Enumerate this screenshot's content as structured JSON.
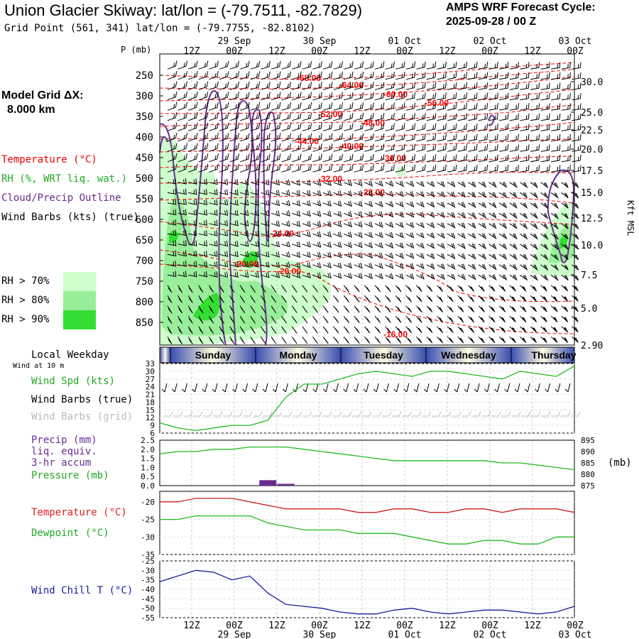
{
  "header": {
    "title": "Union Glacier Skiway:  lat/lon = (-79.7511, -82.7829)",
    "grid_point": "Grid Point (561, 341) lat/lon = (-79.7755, -82.8102)",
    "cycle_label": "AMPS WRF Forecast Cycle:",
    "cycle_value": "2025-09-28 / 00  Z"
  },
  "side_labels": {
    "model_grid": "Model Grid ΔX:",
    "model_grid_value": "8.000 km",
    "temperature": "Temperature (°C)",
    "rh": "RH (%, WRT liq. wat.)",
    "cloud": "Cloud/Precip Outline",
    "wind_barbs": "Wind Barbs (kts) (true)",
    "rh70": "RH > 70%",
    "rh80": "RH > 80%",
    "rh90": "RH > 90%",
    "local_weekday": "Local Weekday",
    "wind_at": "Wind at 10 m",
    "wind_spd": "Wind Spd (kts)",
    "wind_barbs_true": "Wind Barbs (true)",
    "wind_barbs_grid": "Wind Barbs (grid)",
    "precip": "Precip (mm)",
    "liq": "liq. equiv.",
    "accum": "3-hr accum",
    "pressure": "Pressure (mb)",
    "temp2": "Temperature (°C)",
    "dewpoint": "Dewpoint (°C)",
    "windchill": "Wind Chill T (°C)"
  },
  "colors": {
    "temperature": "#ff0000",
    "rh70": "#ccffcc",
    "rh80": "#99ee99",
    "rh90": "#33dd33",
    "cloud": "#6a2c91",
    "wind_speed": "#22bb22",
    "pressure": "#22bb22",
    "dewpoint": "#22bb22",
    "windchill": "#1a1aa0",
    "precip": "#6a2c91",
    "grid_barbs": "#bbbbbb"
  },
  "chart_data": [
    {
      "type": "line",
      "name": "cross-section",
      "ylabel": "P (mb)",
      "y2label": "Kft MSL",
      "x_top_hours": [
        "12Z",
        "00Z",
        "12Z",
        "00Z",
        "12Z",
        "00Z",
        "12Z",
        "00Z",
        "12Z",
        "00Z"
      ],
      "x_top_dates": [
        "29 Sep",
        "30 Sep",
        "01 Oct",
        "02 Oct",
        "03 Oct"
      ],
      "pressure_ticks": [
        250,
        300,
        350,
        400,
        450,
        500,
        550,
        600,
        650,
        700,
        750,
        800,
        850
      ],
      "kft_ticks": [
        "30.0",
        "25.0",
        "22.5",
        "20.0",
        "17.5",
        "15.0",
        "12.5",
        "10.0",
        "7.5",
        "5.0",
        "2.90"
      ],
      "temperature_contours": [
        "-68.00",
        "-64.00",
        "-60.00",
        "-56.00",
        "-52.00",
        "-48.00",
        "-44.00",
        "-40.00",
        "-36.00",
        "-32.00",
        "-28.00",
        "-24.00",
        "-20.00",
        "-20.00",
        "-16.00"
      ]
    },
    {
      "type": "line",
      "name": "wind",
      "weekdays": [
        "Sunday",
        "Monday",
        "Tuesday",
        "Wednesday",
        "Thursday"
      ],
      "y_ticks": [
        6,
        9,
        12,
        15,
        18,
        21,
        24,
        27,
        30,
        33
      ],
      "series": [
        {
          "values": [
            10,
            8,
            7,
            8,
            9,
            9,
            11,
            20,
            25,
            25,
            27,
            29,
            30,
            29,
            28,
            30,
            30,
            29,
            28,
            27,
            30,
            29,
            28,
            32
          ]
        }
      ]
    },
    {
      "type": "line",
      "name": "precip-pressure",
      "y_ticks": [
        "0.0",
        "0.5",
        "1.0",
        "1.5",
        "2.0",
        "2.5"
      ],
      "y2_ticks": [
        875,
        880,
        885,
        890,
        895
      ],
      "y2label": "(mb)",
      "pressure_values": [
        889,
        890,
        890,
        891,
        891,
        892,
        892,
        892,
        891,
        890,
        889,
        888,
        887,
        886,
        886,
        886,
        886,
        886,
        886,
        885,
        885,
        884,
        883,
        882
      ],
      "precip_values": [
        0,
        0,
        0,
        0,
        0,
        0,
        0.3,
        0.1,
        0,
        0,
        0,
        0,
        0,
        0,
        0,
        0,
        0,
        0,
        0,
        0,
        0,
        0,
        0,
        0
      ]
    },
    {
      "type": "line",
      "name": "temperature-dewpoint",
      "y_ticks": [
        -35,
        -30,
        -25,
        -20
      ],
      "series": [
        {
          "values": [
            -20,
            -20,
            -19,
            -19,
            -19,
            -20,
            -21,
            -22,
            -22,
            -22,
            -22,
            -23,
            -23,
            -22,
            -22,
            -23,
            -23,
            -22,
            -22,
            -23,
            -22,
            -22,
            -22,
            -23
          ]
        },
        {
          "values": [
            -25,
            -25,
            -24,
            -24,
            -24,
            -24,
            -26,
            -27,
            -28,
            -28,
            -28,
            -29,
            -29,
            -29,
            -30,
            -31,
            -32,
            -32,
            -31,
            -31,
            -32,
            -32,
            -30,
            -30
          ]
        }
      ]
    },
    {
      "type": "line",
      "name": "windchill",
      "y_ticks": [
        -55,
        -50,
        -45,
        -40,
        -35,
        -30,
        -25
      ],
      "x_bottom_hours": [
        "12Z",
        "00Z",
        "12Z",
        "00Z",
        "12Z",
        "00Z",
        "12Z",
        "00Z",
        "12Z",
        "00Z"
      ],
      "x_bottom_dates": [
        "29 Sep",
        "30 Sep",
        "01 Oct",
        "02 Oct",
        "03 Oct"
      ],
      "series": [
        {
          "values": [
            -36,
            -33,
            -30,
            -31,
            -35,
            -33,
            -42,
            -48,
            -49,
            -50,
            -52,
            -53,
            -53,
            -51,
            -50,
            -52,
            -53,
            -52,
            -51,
            -51,
            -52,
            -53,
            -52,
            -49
          ]
        }
      ]
    }
  ]
}
